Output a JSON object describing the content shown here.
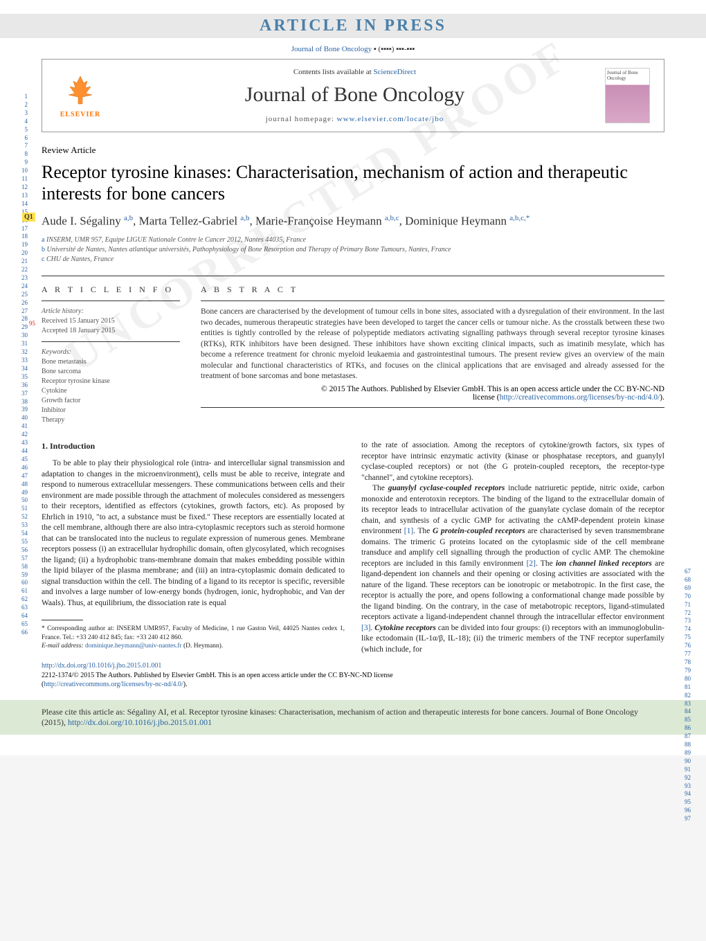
{
  "banner": "ARTICLE IN PRESS",
  "journal_ref_plain": "Journal of Bone Oncology",
  "journal_ref_vol": "▪ (▪▪▪▪) ▪▪▪-▪▪▪",
  "contents_prefix": "Contents lists available at ",
  "contents_link": "ScienceDirect",
  "journal_title": "Journal of Bone Oncology",
  "homepage_prefix": "journal homepage: ",
  "homepage_url": "www.elsevier.com/locate/jbo",
  "elsevier": "ELSEVIER",
  "cover_label": "Journal of Bone Oncology",
  "article_type": "Review Article",
  "title": "Receptor tyrosine kinases: Characterisation, mechanism of action and therapeutic interests for bone cancers",
  "q_tag": "Q1",
  "authors_html": "Aude I. Ségaliny <sup>a,b</sup>, Marta Tellez-Gabriel <sup>a,b</sup>, Marie-Françoise Heymann <sup>a,b,c</sup>, Dominique Heymann <sup>a,b,c,*</sup>",
  "affiliations": {
    "a": "INSERM, UMR 957, Equipe LIGUE Nationale Contre le Cancer 2012, Nantes 44035, France",
    "b": "Université de Nantes, Nantes atlantique universités, Pathophysiology of Bone Resorption and Therapy of Primary Bone Tumours, Nantes, France",
    "c": "CHU de Nantes, France"
  },
  "info_head": "A R T I C L E   I N F O",
  "abstract_head": "A B S T R A C T",
  "history_label": "Article history:",
  "received": "Received 15 January 2015",
  "accepted": "Accepted 18 January 2015",
  "keywords_label": "Keywords:",
  "keywords": [
    "Bone metastasis",
    "Bone sarcoma",
    "Receptor tyrosine kinase",
    "Cytokine",
    "Growth factor",
    "Inhibitor",
    "Therapy"
  ],
  "abstract": "Bone cancers are characterised by the development of tumour cells in bone sites, associated with a dysregulation of their environment. In the last two decades, numerous therapeutic strategies have been developed to target the cancer cells or tumour niche. As the crosstalk between these two entities is tightly controlled by the release of polypeptide mediators activating signalling pathways through several receptor tyrosine kinases (RTKs), RTK inhibitors have been designed. These inhibitors have shown exciting clinical impacts, such as imatinib mesylate, which has become a reference treatment for chronic myeloid leukaemia and gastrointestinal tumours. The present review gives an overview of the main molecular and functional characteristics of RTKs, and focuses on the clinical applications that are envisaged and already assessed for the treatment of bone sarcomas and bone metastases.",
  "copyright_line": "© 2015 The Authors. Published by Elsevier GmbH. This is an open access article under the CC BY-NC-ND",
  "license_label": "license (",
  "license_url": "http://creativecommons.org/licenses/by-nc-nd/4.0/",
  "license_close": ").",
  "intro_head": "1.  Introduction",
  "col1_p1": "To be able to play their physiological role (intra- and intercellular signal transmission and adaptation to changes in the microenvironment), cells must be able to receive, integrate and respond to numerous extracellular messengers. These communications between cells and their environment are made possible through the attachment of molecules considered as messengers to their receptors, identified as effectors (cytokines, growth factors, etc). As proposed by Ehrlich in 1910, \"to act, a substance must be fixed.\" These receptors are essentially located at the cell membrane, although there are also intra-cytoplasmic receptors such as steroid hormone that can be translocated into the nucleus to regulate expression of numerous genes. Membrane receptors possess (i) an extracellular hydrophilic domain, often glycosylated, which recognises the ligand; (ii) a hydrophobic trans-membrane domain that makes embedding possible within the lipid bilayer of the plasma membrane; and (iii) an intra-cytoplasmic domain dedicated to signal transduction within the cell. The binding of a ligand to its receptor is specific, reversible and involves a large number of low-energy bonds (hydrogen, ionic, hydrophobic, and Van der Waals). Thus, at equilibrium, the dissociation rate is equal",
  "footnote_marker": "* ",
  "footnote_text": "Corresponding author at: INSERM UMR957, Faculty of Medicine, 1 rue Gaston Veil, 44025 Nantes cedex 1, France. Tel.: +33 240 412 845; fax: +33 240 412 860.",
  "footnote_email_label": "E-mail address: ",
  "footnote_email": "dominique.heymann@univ-nantes.fr",
  "footnote_email_suffix": " (D. Heymann).",
  "col2_p1": "to the rate of association. Among the receptors of cytokine/growth factors, six types of receptor have intrinsic enzymatic activity (kinase or phosphatase receptors, and guanylyl cyclase-coupled receptors) or not (the G protein-coupled receptors, the receptor-type \"channel\", and cytokine receptors).",
  "col2_p2_a": "The ",
  "col2_term1": "guanylyl cyclase-coupled receptors",
  "col2_p2_b": " include natriuretic peptide, nitric oxide, carbon monoxide and enterotoxin receptors. The binding of the ligand to the extracellular domain of its receptor leads to intracellular activation of the guanylate cyclase domain of the receptor chain, and synthesis of a cyclic GMP for activating the cAMP-dependent protein kinase environment ",
  "ref1": "[1]",
  "col2_p2_c": ". The ",
  "col2_term2": "G protein-coupled receptors",
  "col2_p2_d": " are characterised by seven transmembrane domains. The trimeric G proteins located on the cytoplasmic side of the cell membrane transduce and amplify cell signalling through the production of cyclic AMP. The chemokine receptors are included in this family environment ",
  "ref2": "[2]",
  "col2_p2_e": ". The ",
  "col2_term3": "ion channel linked receptors",
  "col2_p2_f": " are ligand-dependent ion channels and their opening or closing activities are associated with the nature of the ligand. These receptors can be ionotropic or metabotropic. In the first case, the receptor is actually the pore, and opens following a conformational change made possible by the ligand binding. On the contrary, in the case of metabotropic receptors, ligand-stimulated receptors activate a ligand-independent channel through the intracellular effector environment ",
  "ref3": "[3]",
  "col2_p2_g": ". ",
  "col2_term4": "Cytokine receptors",
  "col2_p2_h": " can be divided into four groups: (i) receptors with an immunoglobulin-like ectodomain (IL-1α/β, IL-18); (ii) the trimeric members of the TNF receptor superfamily (which include, for",
  "doi_url": "http://dx.doi.org/10.1016/j.jbo.2015.01.001",
  "foot_copyright": "2212-1374/© 2015 The Authors. Published by Elsevier GmbH. This is an open access article under the CC BY-NC-ND license",
  "foot_license_open": "(",
  "foot_license_close": ").",
  "cite_prefix": "Please cite this article as: Ségaliny AI, et al. Receptor tyrosine kinases: Characterisation, mechanism of action and therapeutic interests for bone cancers. Journal of Bone Oncology (2015), ",
  "line_nums_left": "1\n2\n3\n4\n5\n6\n7\n8\n9\n10\n11\n12\n13\n14\n15\n16\n17\n18\n19\n20\n21\n22\n23\n24\n25\n26\n27\n28\n29\n30\n31\n32\n33\n34\n35\n36\n37\n38\n39\n40\n41\n42\n43\n44\n45\n46\n47\n48\n49\n50\n51\n52\n53\n54\n55\n56\n57\n58\n59\n60\n61\n62\n63\n64\n65\n66",
  "line_nums_right": "67\n68\n69\n70\n71\n72\n73\n74\n75\n76\n77\n78\n79\n80\n81\n82\n83\n84\n85\n86\n87\n88\n89\n90\n91\n92\n93\n94\n95\n96\n97",
  "red_nums": "95",
  "watermark": "UNCORRECTED PROOF"
}
